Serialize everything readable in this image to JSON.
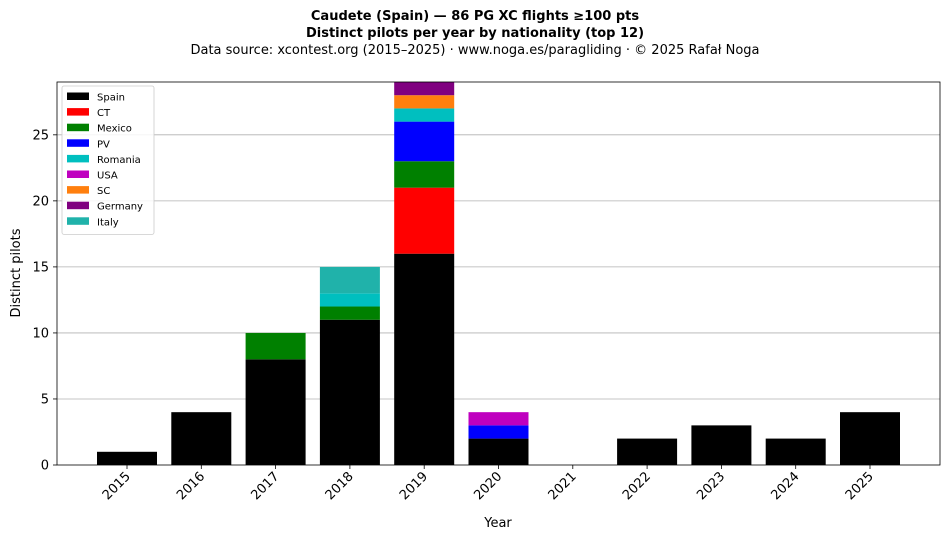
{
  "header": {
    "title_line1": "Caudete (Spain)  —  86 PG XC flights ≥100 pts",
    "title_line2": "Distinct pilots per year by nationality (top 12)",
    "title_line3": "Data source: xcontest.org (2015–2025)  ·  www.noga.es/paragliding  ·  © 2025 Rafał Noga"
  },
  "chart_data": {
    "type": "bar",
    "stacked": true,
    "categories": [
      "2015",
      "2016",
      "2017",
      "2018",
      "2019",
      "2020",
      "2021",
      "2022",
      "2023",
      "2024",
      "2025"
    ],
    "series": [
      {
        "name": "Spain",
        "color": "#000000",
        "values": [
          1,
          4,
          8,
          11,
          16,
          2,
          0,
          2,
          3,
          2,
          4
        ]
      },
      {
        "name": "CT",
        "color": "#ff0000",
        "values": [
          0,
          0,
          0,
          0,
          5,
          0,
          0,
          0,
          0,
          0,
          0
        ]
      },
      {
        "name": "Mexico",
        "color": "#008000",
        "values": [
          0,
          0,
          2,
          1,
          2,
          0,
          0,
          0,
          0,
          0,
          0
        ]
      },
      {
        "name": "PV",
        "color": "#0000ff",
        "values": [
          0,
          0,
          0,
          0,
          3,
          1,
          0,
          0,
          0,
          0,
          0
        ]
      },
      {
        "name": "Romania",
        "color": "#00bfbf",
        "values": [
          0,
          0,
          0,
          1,
          1,
          0,
          0,
          0,
          0,
          0,
          0
        ]
      },
      {
        "name": "USA",
        "color": "#bf00bf",
        "values": [
          0,
          0,
          0,
          0,
          0,
          1,
          0,
          0,
          0,
          0,
          0
        ]
      },
      {
        "name": "SC",
        "color": "#ff7f0e",
        "values": [
          0,
          0,
          0,
          0,
          1,
          0,
          0,
          0,
          0,
          0,
          0
        ]
      },
      {
        "name": "Germany",
        "color": "#800080",
        "values": [
          0,
          0,
          0,
          0,
          1,
          0,
          0,
          0,
          0,
          0,
          0
        ]
      },
      {
        "name": "Italy",
        "color": "#20b2aa",
        "values": [
          0,
          0,
          0,
          2,
          0,
          0,
          0,
          0,
          0,
          0,
          0
        ]
      }
    ],
    "xlabel": "Year",
    "ylabel": "Distinct pilots",
    "ylim": [
      0,
      29
    ],
    "yticks": [
      0,
      5,
      10,
      15,
      20,
      25
    ],
    "grid": "y",
    "legend_position": "top-left"
  }
}
